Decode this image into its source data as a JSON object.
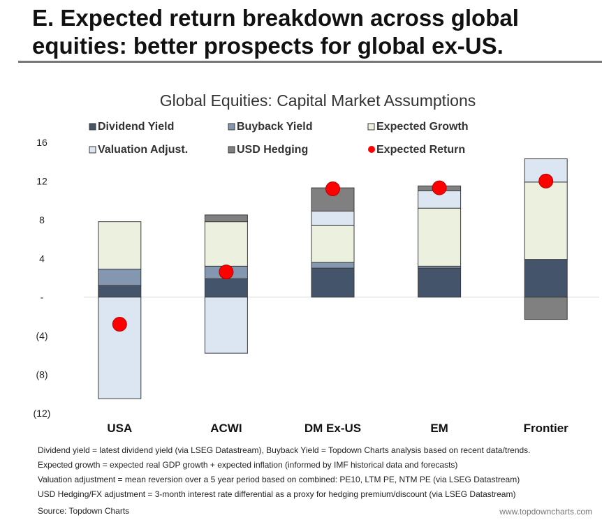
{
  "headline": {
    "line1": "E. Expected return breakdown across global",
    "line2": "equities: better prospects for global ex-US."
  },
  "chart_data": {
    "type": "bar",
    "stacked": true,
    "title": "Global Equities: Capital Market Assumptions",
    "categories": [
      "USA",
      "ACWI",
      "DM Ex-US",
      "EM",
      "Frontier"
    ],
    "ylim": [
      -12,
      16
    ],
    "yticks": [
      16,
      12,
      8,
      4,
      0,
      -4,
      -8,
      -12
    ],
    "ytick_labels": [
      "16",
      "12",
      "8",
      "4",
      "-",
      "(4)",
      "(8)",
      "(12)"
    ],
    "grid": false,
    "legend_placement": "top",
    "series": [
      {
        "name": "Dividend Yield",
        "color": "#44546a",
        "values": [
          1.2,
          1.9,
          3.0,
          3.0,
          3.9
        ]
      },
      {
        "name": "Buyback Yield",
        "color": "#8497b0",
        "values": [
          1.7,
          1.3,
          0.6,
          0.2,
          0.0
        ]
      },
      {
        "name": "Expected Growth",
        "color": "#ebf1de",
        "values": [
          4.9,
          4.6,
          3.8,
          6.0,
          8.0
        ]
      },
      {
        "name": "Valuation Adjust.",
        "color": "#dce6f2",
        "values": [
          -10.5,
          -5.8,
          1.5,
          1.8,
          2.4
        ]
      },
      {
        "name": "USD Hedging",
        "color": "#808080",
        "values": [
          0.0,
          0.7,
          2.4,
          0.5,
          -2.3
        ]
      }
    ],
    "expected_return": {
      "name": "Expected Return",
      "color": "#ff0000",
      "values": [
        -2.8,
        2.6,
        11.2,
        11.3,
        12.0
      ]
    }
  },
  "notes": [
    "Dividend yield = latest dividend yield (via LSEG Datastream), Buyback Yield = Topdown Charts analysis based on recent data/trends.",
    "Expected growth = expected real GDP growth + expected inflation (informed by IMF historical data and forecasts)",
    "Valuation adjustment = mean reversion over a 5 year period based on combined: PE10, LTM PE, NTM PE (via LSEG Datastream)",
    "USD Hedging/FX adjustment = 3-month interest rate differential as a proxy for hedging premium/discount (via LSEG Datastream)"
  ],
  "source": "Source: Topdown Charts",
  "website": "www.topdowncharts.com"
}
